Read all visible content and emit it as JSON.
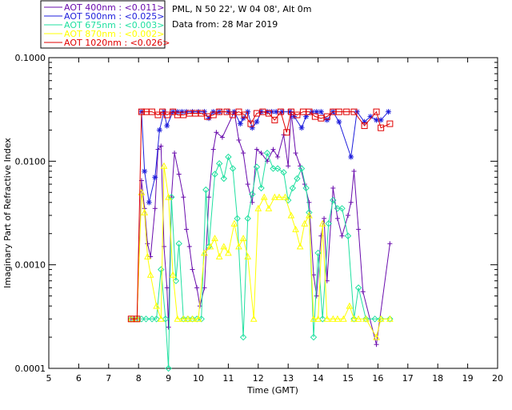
{
  "header": {
    "site": "PML, N 50 22', W 04 08', Alt 0m",
    "date": "Data from: 28 Mar 2019"
  },
  "chart_data": {
    "type": "line",
    "xlabel": "Time (GMT)",
    "ylabel": "Imaginary Part of Refractive Index",
    "xlim": [
      5,
      20
    ],
    "ylim": [
      0.0001,
      0.1
    ],
    "yscale": "log",
    "x_ticks": [
      "5",
      "6",
      "7",
      "8",
      "9",
      "10",
      "11",
      "12",
      "13",
      "14",
      "15",
      "16",
      "17",
      "18",
      "19",
      "20"
    ],
    "y_ticks": [
      "0.0001",
      "0.0010",
      "0.0100",
      "0.1000"
    ],
    "grid": false,
    "legend_position": "top-left",
    "series": [
      {
        "name": "AOT  400nm : <0.011>",
        "color": "#6a0dad",
        "marker": "plus",
        "points": [
          [
            7.75,
            0.0003
          ],
          [
            7.95,
            0.0003
          ],
          [
            8.1,
            0.0065
          ],
          [
            8.2,
            0.0035
          ],
          [
            8.3,
            0.0016
          ],
          [
            8.4,
            0.0012
          ],
          [
            8.55,
            0.0035
          ],
          [
            8.65,
            0.013
          ],
          [
            8.75,
            0.014
          ],
          [
            8.85,
            0.0015
          ],
          [
            8.95,
            0.0006
          ],
          [
            9.0,
            0.00025
          ],
          [
            9.1,
            0.0045
          ],
          [
            9.2,
            0.012
          ],
          [
            9.35,
            0.0075
          ],
          [
            9.5,
            0.0045
          ],
          [
            9.6,
            0.0022
          ],
          [
            9.7,
            0.0015
          ],
          [
            9.8,
            0.0009
          ],
          [
            9.95,
            0.0006
          ],
          [
            10.05,
            0.0004
          ],
          [
            10.2,
            0.0006
          ],
          [
            10.35,
            0.0045
          ],
          [
            10.5,
            0.013
          ],
          [
            10.6,
            0.019
          ],
          [
            10.8,
            0.017
          ],
          [
            11.2,
            0.03
          ],
          [
            11.35,
            0.016
          ],
          [
            11.5,
            0.012
          ],
          [
            11.65,
            0.006
          ],
          [
            11.8,
            0.004
          ],
          [
            11.95,
            0.013
          ],
          [
            12.1,
            0.012
          ],
          [
            12.3,
            0.01
          ],
          [
            12.5,
            0.013
          ],
          [
            12.65,
            0.011
          ],
          [
            12.85,
            0.018
          ],
          [
            13.0,
            0.009
          ],
          [
            13.1,
            0.03
          ],
          [
            13.25,
            0.012
          ],
          [
            13.4,
            0.009
          ],
          [
            13.55,
            0.006
          ],
          [
            13.7,
            0.004
          ],
          [
            13.85,
            0.0008
          ],
          [
            13.95,
            0.0005
          ],
          [
            14.1,
            0.0019
          ],
          [
            14.2,
            0.0028
          ],
          [
            14.3,
            0.0007
          ],
          [
            14.5,
            0.0055
          ],
          [
            14.65,
            0.0028
          ],
          [
            14.8,
            0.0019
          ],
          [
            15.0,
            0.003
          ],
          [
            15.1,
            0.004
          ],
          [
            15.2,
            0.008
          ],
          [
            15.35,
            0.0022
          ],
          [
            15.5,
            0.00055
          ],
          [
            15.95,
            0.00017
          ],
          [
            16.4,
            0.0016
          ]
        ]
      },
      {
        "name": "AOT  500nm : <0.025>",
        "color": "#1e1edc",
        "marker": "star",
        "points": [
          [
            8.1,
            0.03
          ],
          [
            8.2,
            0.008
          ],
          [
            8.35,
            0.004
          ],
          [
            8.55,
            0.007
          ],
          [
            8.7,
            0.02
          ],
          [
            8.85,
            0.03
          ],
          [
            8.95,
            0.022
          ],
          [
            9.15,
            0.03
          ],
          [
            9.3,
            0.03
          ],
          [
            9.45,
            0.03
          ],
          [
            9.6,
            0.03
          ],
          [
            9.8,
            0.03
          ],
          [
            10.0,
            0.03
          ],
          [
            10.2,
            0.03
          ],
          [
            10.35,
            0.026
          ],
          [
            10.5,
            0.03
          ],
          [
            10.7,
            0.03
          ],
          [
            11.0,
            0.03
          ],
          [
            11.2,
            0.03
          ],
          [
            11.4,
            0.023
          ],
          [
            11.5,
            0.026
          ],
          [
            11.65,
            0.03
          ],
          [
            11.8,
            0.021
          ],
          [
            11.95,
            0.024
          ],
          [
            12.1,
            0.03
          ],
          [
            12.3,
            0.03
          ],
          [
            12.45,
            0.03
          ],
          [
            12.6,
            0.03
          ],
          [
            12.8,
            0.03
          ],
          [
            13.05,
            0.03
          ],
          [
            13.2,
            0.027
          ],
          [
            13.45,
            0.021
          ],
          [
            13.6,
            0.027
          ],
          [
            13.8,
            0.03
          ],
          [
            13.95,
            0.03
          ],
          [
            14.1,
            0.03
          ],
          [
            14.3,
            0.025
          ],
          [
            14.5,
            0.03
          ],
          [
            14.7,
            0.024
          ],
          [
            15.1,
            0.011
          ],
          [
            15.3,
            0.03
          ],
          [
            15.55,
            0.024
          ],
          [
            15.75,
            0.027
          ],
          [
            15.95,
            0.025
          ],
          [
            16.1,
            0.025
          ],
          [
            16.35,
            0.03
          ]
        ]
      },
      {
        "name": "AOT  675nm : <0.003>",
        "color": "#20e0a0",
        "marker": "diamond",
        "points": [
          [
            7.75,
            0.0003
          ],
          [
            7.95,
            0.0003
          ],
          [
            8.1,
            0.0003
          ],
          [
            8.25,
            0.0003
          ],
          [
            8.45,
            0.0003
          ],
          [
            8.6,
            0.0003
          ],
          [
            8.75,
            0.0009
          ],
          [
            8.9,
            0.0003
          ],
          [
            9.0,
            0.0001
          ],
          [
            9.1,
            0.0045
          ],
          [
            9.25,
            0.0007
          ],
          [
            9.35,
            0.0016
          ],
          [
            9.5,
            0.0003
          ],
          [
            9.65,
            0.0003
          ],
          [
            9.8,
            0.0003
          ],
          [
            9.95,
            0.0003
          ],
          [
            10.1,
            0.0003
          ],
          [
            10.25,
            0.0053
          ],
          [
            10.35,
            0.0015
          ],
          [
            10.55,
            0.0075
          ],
          [
            10.7,
            0.0095
          ],
          [
            10.85,
            0.0068
          ],
          [
            11.0,
            0.011
          ],
          [
            11.15,
            0.0085
          ],
          [
            11.3,
            0.0028
          ],
          [
            11.5,
            0.0002
          ],
          [
            11.65,
            0.0028
          ],
          [
            11.8,
            0.0048
          ],
          [
            11.95,
            0.0088
          ],
          [
            12.1,
            0.0055
          ],
          [
            12.3,
            0.012
          ],
          [
            12.5,
            0.0085
          ],
          [
            12.65,
            0.0085
          ],
          [
            12.85,
            0.0078
          ],
          [
            13.0,
            0.0042
          ],
          [
            13.15,
            0.0055
          ],
          [
            13.3,
            0.0068
          ],
          [
            13.45,
            0.0085
          ],
          [
            13.6,
            0.0055
          ],
          [
            13.7,
            0.0032
          ],
          [
            13.85,
            0.0002
          ],
          [
            14.0,
            0.0013
          ],
          [
            14.15,
            0.0003
          ],
          [
            14.35,
            0.0025
          ],
          [
            14.5,
            0.0042
          ],
          [
            14.65,
            0.0035
          ],
          [
            14.8,
            0.0035
          ],
          [
            15.0,
            0.0019
          ],
          [
            15.2,
            0.0003
          ],
          [
            15.35,
            0.0006
          ],
          [
            15.6,
            0.0003
          ],
          [
            15.9,
            0.0003
          ],
          [
            16.1,
            0.0003
          ],
          [
            16.4,
            0.0003
          ]
        ]
      },
      {
        "name": "AOT  870nm : <0.002>",
        "color": "#ffff00",
        "marker": "triangle",
        "points": [
          [
            7.75,
            0.0003
          ],
          [
            7.95,
            0.0003
          ],
          [
            8.1,
            0.005
          ],
          [
            8.2,
            0.0032
          ],
          [
            8.3,
            0.0012
          ],
          [
            8.4,
            0.0008
          ],
          [
            8.6,
            0.0004
          ],
          [
            8.75,
            0.0003
          ],
          [
            8.85,
            0.009
          ],
          [
            9.0,
            0.0045
          ],
          [
            9.15,
            0.0008
          ],
          [
            9.3,
            0.0003
          ],
          [
            9.5,
            0.0003
          ],
          [
            9.65,
            0.0003
          ],
          [
            9.8,
            0.0003
          ],
          [
            10.0,
            0.0003
          ],
          [
            10.2,
            0.0013
          ],
          [
            10.4,
            0.0015
          ],
          [
            10.55,
            0.0018
          ],
          [
            10.7,
            0.0012
          ],
          [
            10.85,
            0.0015
          ],
          [
            11.0,
            0.0013
          ],
          [
            11.2,
            0.0025
          ],
          [
            11.35,
            0.0015
          ],
          [
            11.5,
            0.0018
          ],
          [
            11.65,
            0.0012
          ],
          [
            11.85,
            0.0003
          ],
          [
            12.0,
            0.0035
          ],
          [
            12.2,
            0.0045
          ],
          [
            12.35,
            0.0035
          ],
          [
            12.55,
            0.0045
          ],
          [
            12.7,
            0.0045
          ],
          [
            12.9,
            0.0045
          ],
          [
            13.1,
            0.003
          ],
          [
            13.25,
            0.0022
          ],
          [
            13.4,
            0.0015
          ],
          [
            13.55,
            0.0025
          ],
          [
            13.7,
            0.003
          ],
          [
            13.85,
            0.0003
          ],
          [
            14.0,
            0.0003
          ],
          [
            14.15,
            0.0025
          ],
          [
            14.3,
            0.0003
          ],
          [
            14.5,
            0.0003
          ],
          [
            14.65,
            0.0003
          ],
          [
            14.85,
            0.0003
          ],
          [
            15.05,
            0.0004
          ],
          [
            15.2,
            0.0003
          ],
          [
            15.35,
            0.0003
          ],
          [
            15.6,
            0.0003
          ],
          [
            15.95,
            0.0002
          ],
          [
            16.1,
            0.0003
          ],
          [
            16.4,
            0.0003
          ]
        ]
      },
      {
        "name": "AOT 1020nm : <0.026>",
        "color": "#e00000",
        "marker": "square",
        "points": [
          [
            7.75,
            0.0003
          ],
          [
            7.95,
            0.0003
          ],
          [
            8.1,
            0.03
          ],
          [
            8.25,
            0.03
          ],
          [
            8.45,
            0.03
          ],
          [
            8.65,
            0.028
          ],
          [
            8.8,
            0.03
          ],
          [
            8.95,
            0.028
          ],
          [
            9.15,
            0.03
          ],
          [
            9.3,
            0.028
          ],
          [
            9.5,
            0.028
          ],
          [
            9.7,
            0.029
          ],
          [
            9.9,
            0.029
          ],
          [
            10.1,
            0.029
          ],
          [
            10.3,
            0.027
          ],
          [
            10.5,
            0.028
          ],
          [
            10.7,
            0.03
          ],
          [
            10.95,
            0.03
          ],
          [
            11.15,
            0.028
          ],
          [
            11.35,
            0.03
          ],
          [
            11.55,
            0.028
          ],
          [
            11.75,
            0.023
          ],
          [
            11.95,
            0.029
          ],
          [
            12.15,
            0.03
          ],
          [
            12.35,
            0.029
          ],
          [
            12.55,
            0.025
          ],
          [
            12.75,
            0.03
          ],
          [
            12.95,
            0.019
          ],
          [
            13.1,
            0.03
          ],
          [
            13.3,
            0.028
          ],
          [
            13.5,
            0.03
          ],
          [
            13.7,
            0.03
          ],
          [
            13.9,
            0.027
          ],
          [
            14.1,
            0.026
          ],
          [
            14.3,
            0.027
          ],
          [
            14.5,
            0.03
          ],
          [
            14.7,
            0.03
          ],
          [
            14.95,
            0.03
          ],
          [
            15.2,
            0.03
          ],
          [
            15.55,
            0.022
          ],
          [
            15.95,
            0.03
          ],
          [
            16.1,
            0.021
          ],
          [
            16.4,
            0.023
          ]
        ]
      }
    ]
  }
}
